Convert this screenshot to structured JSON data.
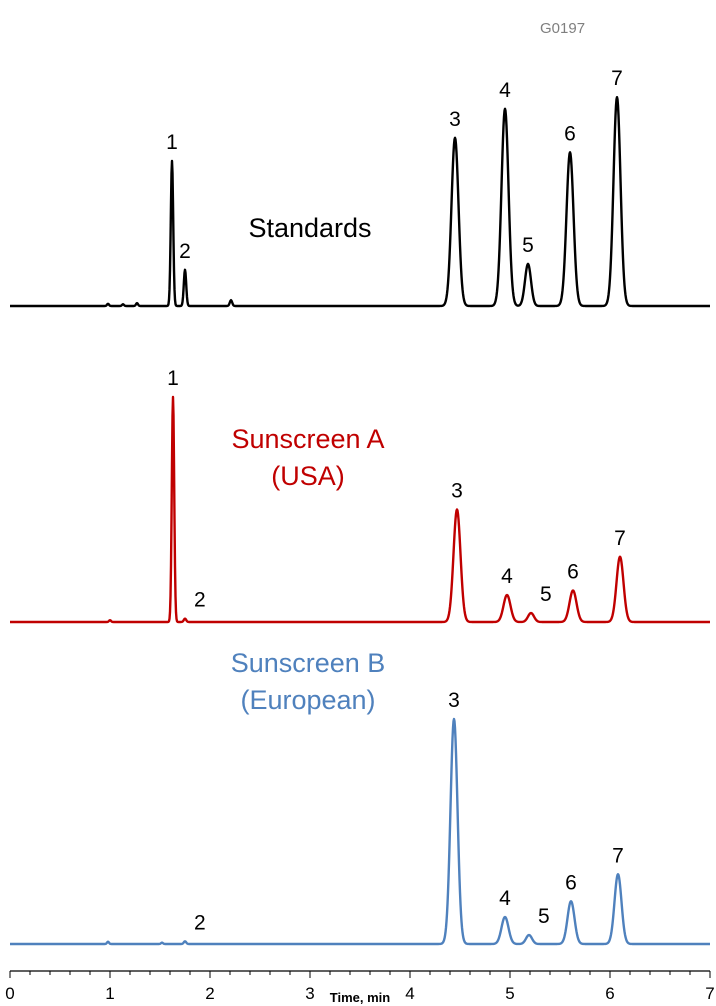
{
  "figure_code": "G0197",
  "chart_data": {
    "type": "line",
    "xlabel": "Time, min",
    "ylabel": "",
    "xlim": [
      0,
      7
    ],
    "x_ticks": [
      0,
      1,
      2,
      3,
      4,
      5,
      6,
      7
    ],
    "x_tick_labels": [
      "0",
      "1",
      "2",
      "3",
      "4",
      "5",
      "6",
      "7"
    ],
    "grid": false,
    "series": [
      {
        "name": "Standards",
        "name_lines": [
          "Standards"
        ],
        "color": "#000000",
        "peaks": [
          {
            "label": "1",
            "time": 1.62,
            "height": 1.0,
            "width": 0.012
          },
          {
            "label": "2",
            "time": 1.75,
            "height": 0.25,
            "width": 0.012
          },
          {
            "label": "",
            "time": 0.98,
            "height": 0.015,
            "width": 0.01
          },
          {
            "label": "",
            "time": 1.13,
            "height": 0.012,
            "width": 0.01
          },
          {
            "label": "",
            "time": 1.27,
            "height": 0.02,
            "width": 0.01
          },
          {
            "label": "",
            "time": 2.21,
            "height": 0.04,
            "width": 0.012
          },
          {
            "label": "3",
            "time": 4.45,
            "height": 1.16,
            "width": 0.035
          },
          {
            "label": "4",
            "time": 4.95,
            "height": 1.36,
            "width": 0.035
          },
          {
            "label": "5",
            "time": 5.18,
            "height": 0.29,
            "width": 0.03
          },
          {
            "label": "6",
            "time": 5.6,
            "height": 1.06,
            "width": 0.035
          },
          {
            "label": "7",
            "time": 6.07,
            "height": 1.44,
            "width": 0.035
          }
        ]
      },
      {
        "name": "Sunscreen A (USA)",
        "name_lines": [
          "Sunscreen A",
          "(USA)"
        ],
        "color": "#c00000",
        "peaks": [
          {
            "label": "1",
            "time": 1.63,
            "height": 1.0,
            "width": 0.012
          },
          {
            "label": "2",
            "time": 1.75,
            "height": 0.015,
            "width": 0.012
          },
          {
            "label": "",
            "time": 1.0,
            "height": 0.008,
            "width": 0.01
          },
          {
            "label": "3",
            "time": 4.47,
            "height": 0.5,
            "width": 0.035
          },
          {
            "label": "4",
            "time": 4.97,
            "height": 0.12,
            "width": 0.035
          },
          {
            "label": "5",
            "time": 5.21,
            "height": 0.04,
            "width": 0.03
          },
          {
            "label": "6",
            "time": 5.63,
            "height": 0.14,
            "width": 0.035
          },
          {
            "label": "7",
            "time": 6.1,
            "height": 0.29,
            "width": 0.035
          }
        ]
      },
      {
        "name": "Sunscreen B (European)",
        "name_lines": [
          "Sunscreen B",
          "(European)"
        ],
        "color": "#4f81bd",
        "peaks": [
          {
            "label": "2",
            "time": 1.75,
            "height": 0.012,
            "width": 0.012
          },
          {
            "label": "",
            "time": 0.98,
            "height": 0.01,
            "width": 0.01
          },
          {
            "label": "",
            "time": 1.52,
            "height": 0.006,
            "width": 0.01
          },
          {
            "label": "3",
            "time": 4.44,
            "height": 1.0,
            "width": 0.035
          },
          {
            "label": "4",
            "time": 4.95,
            "height": 0.12,
            "width": 0.035
          },
          {
            "label": "5",
            "time": 5.19,
            "height": 0.04,
            "width": 0.03
          },
          {
            "label": "6",
            "time": 5.61,
            "height": 0.19,
            "width": 0.035
          },
          {
            "label": "7",
            "time": 6.08,
            "height": 0.31,
            "width": 0.035
          }
        ]
      }
    ]
  }
}
